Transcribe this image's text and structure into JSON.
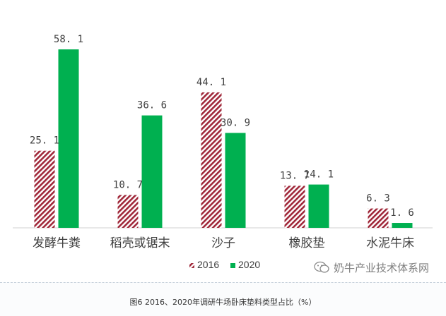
{
  "chart_data": {
    "type": "bar",
    "categories": [
      "发酵牛粪",
      "稻壳或锯末",
      "沙子",
      "橡胶垫",
      "水泥牛床"
    ],
    "series": [
      {
        "name": "2016",
        "values": [
          25.1,
          10.7,
          44.1,
          13.7,
          6.3
        ],
        "value_labels": [
          "25. 1",
          "10. 7",
          "44. 1",
          "13. 7",
          "6. 3"
        ],
        "color": "#a0283a",
        "pattern": "diagonal-hatch"
      },
      {
        "name": "2020",
        "values": [
          58.1,
          36.6,
          30.9,
          14.1,
          1.6
        ],
        "value_labels": [
          "58. 1",
          "36. 6",
          "30. 9",
          "14. 1",
          "1. 6"
        ],
        "color": "#00b050",
        "pattern": "solid"
      }
    ],
    "ylim": [
      0,
      58.1
    ],
    "grid": false,
    "legend_position": "bottom-center",
    "caption": "图6  2016、2020年调研牛场卧床垫料类型占比（%）"
  },
  "watermark": {
    "text": "奶牛产业技术体系网",
    "icon": "wechat-icon"
  }
}
